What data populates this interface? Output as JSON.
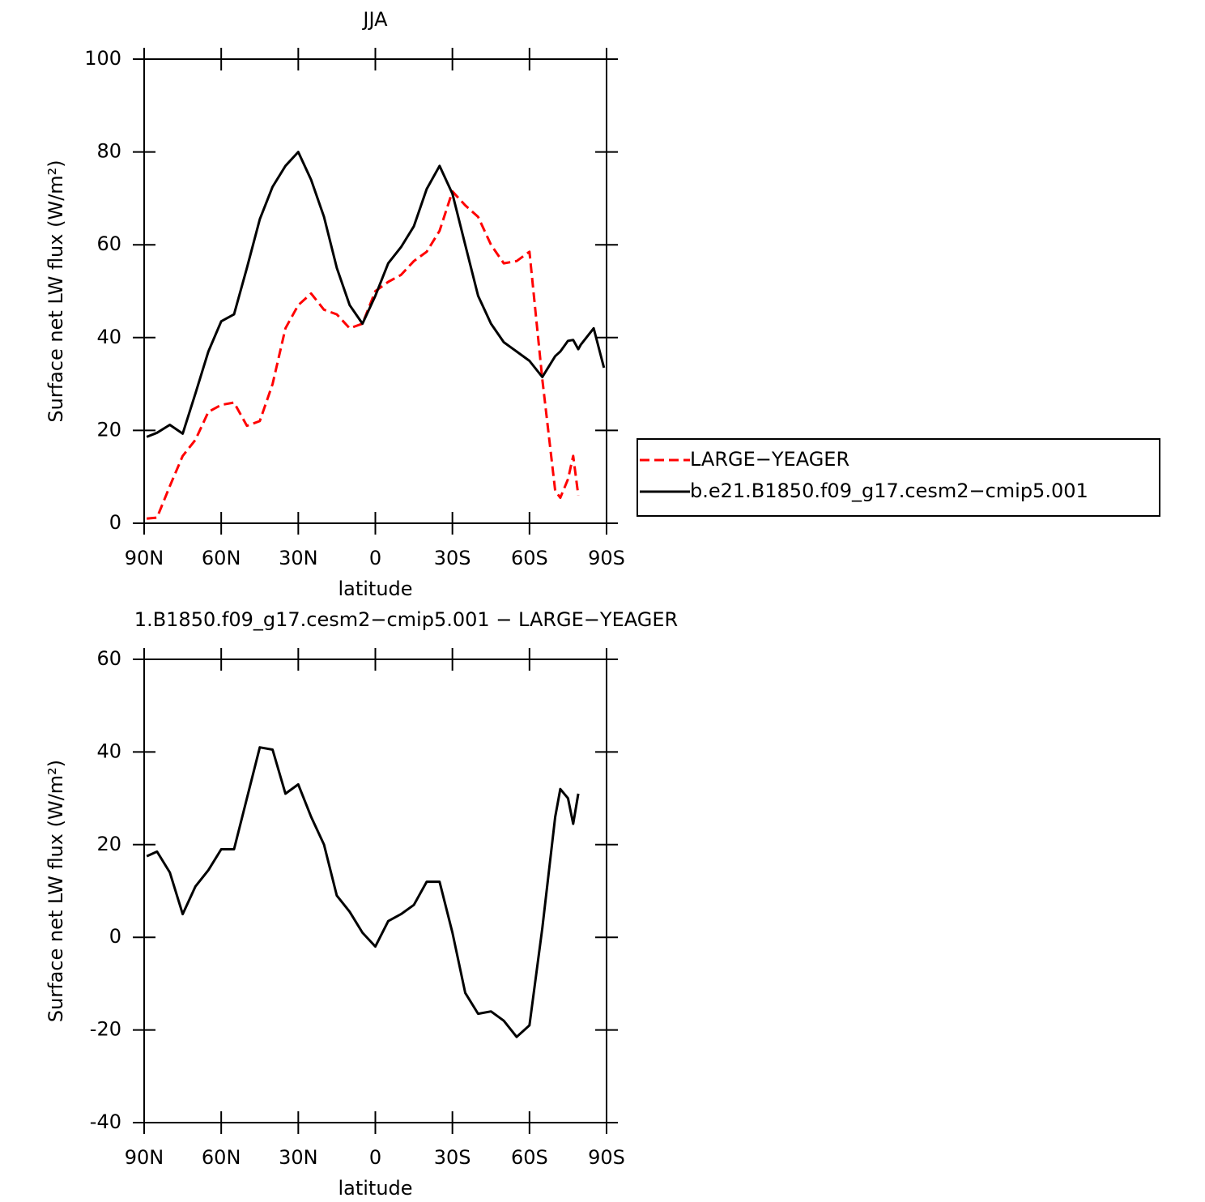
{
  "chart_data": [
    {
      "type": "line",
      "title": "JJA",
      "xlabel": "latitude",
      "ylabel": "Surface net LW flux (W/m²)",
      "x": [
        89,
        85,
        80,
        75,
        70,
        65,
        60,
        55,
        50,
        45,
        40,
        35,
        30,
        25,
        20,
        15,
        10,
        5,
        0,
        -5,
        -10,
        -15,
        -20,
        -25,
        -30,
        -35,
        -40,
        -45,
        -50,
        -55,
        -60,
        -65,
        -70,
        -72,
        -75,
        -77,
        -79,
        -80,
        -85,
        -89
      ],
      "xlim": [
        90,
        -90
      ],
      "xticks": [
        {
          "value": 90,
          "label": "90N"
        },
        {
          "value": 60,
          "label": "60N"
        },
        {
          "value": 30,
          "label": "30N"
        },
        0,
        {
          "value": -30,
          "label": "30S"
        },
        {
          "value": -60,
          "label": "60S"
        },
        {
          "value": -90,
          "label": "90S"
        }
      ],
      "ylim": [
        0,
        100
      ],
      "yticks": [
        0,
        20,
        40,
        60,
        80,
        100
      ],
      "legend": "right",
      "series": [
        {
          "name": "LARGE−YEAGER",
          "color": "#ff0000",
          "dash": true,
          "values": [
            1,
            1.2,
            8,
            14.5,
            18,
            24,
            25.5,
            26,
            21,
            22,
            30,
            42,
            47,
            49.5,
            46,
            45,
            42,
            43,
            50,
            52,
            53.5,
            56.5,
            58.5,
            63,
            71.5,
            68.5,
            66,
            60,
            56,
            56.5,
            58.5,
            31,
            7,
            5.5,
            9.5,
            14.5,
            6,
            null,
            null,
            null
          ]
        },
        {
          "name": "b.e21.B1850.f09_g17.cesm2−cmip5.001",
          "color": "#000000",
          "dash": false,
          "values": [
            18.6,
            19.5,
            21.2,
            19.3,
            28,
            37,
            43.5,
            45,
            55,
            65.5,
            72.5,
            77,
            80,
            74,
            66,
            55,
            47,
            43,
            49,
            56,
            59.5,
            64,
            72,
            77,
            71,
            60,
            49,
            43,
            39,
            37,
            35,
            31.5,
            36,
            37,
            39.3,
            39.5,
            37.5,
            38.5,
            42,
            33.5
          ]
        }
      ]
    },
    {
      "type": "line",
      "title": "1.B1850.f09_g17.cesm2−cmip5.001  −  LARGE−YEAGER",
      "xlabel": "latitude",
      "ylabel": "Surface net LW flux (W/m²)",
      "x": [
        89,
        85,
        80,
        75,
        70,
        65,
        60,
        55,
        50,
        45,
        40,
        35,
        30,
        25,
        20,
        15,
        10,
        5,
        0,
        -5,
        -10,
        -15,
        -20,
        -25,
        -30,
        -35,
        -40,
        -45,
        -50,
        -55,
        -60,
        -65,
        -70,
        -72,
        -75,
        -77,
        -79
      ],
      "xlim": [
        90,
        -90
      ],
      "xticks": [
        {
          "value": 90,
          "label": "90N"
        },
        {
          "value": 60,
          "label": "60N"
        },
        {
          "value": 30,
          "label": "30N"
        },
        0,
        {
          "value": -30,
          "label": "30S"
        },
        {
          "value": -60,
          "label": "60S"
        },
        {
          "value": -90,
          "label": "90S"
        }
      ],
      "ylim": [
        -40,
        60
      ],
      "yticks": [
        -40,
        -20,
        0,
        20,
        40,
        60
      ],
      "series": [
        {
          "color": "#000000",
          "dash": false,
          "values": [
            17.5,
            18.5,
            14,
            5,
            11,
            14.5,
            19,
            19,
            30,
            41,
            40.5,
            31,
            33,
            26,
            20,
            9,
            5.5,
            1,
            -2,
            3.5,
            5,
            7,
            12,
            12,
            1,
            -12,
            -16.5,
            -16,
            -18,
            -21.5,
            -19,
            2,
            26,
            32,
            30,
            24.5,
            31
          ]
        }
      ]
    }
  ]
}
